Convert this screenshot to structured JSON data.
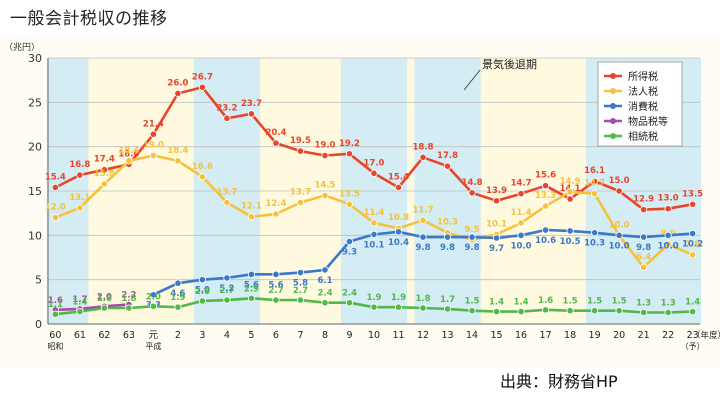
{
  "title": "一般会計税収の推移",
  "source": "出典：財務省HP",
  "chart_data": {
    "type": "line",
    "unit_label": "（兆円）",
    "x_unit_label": "（年度）",
    "categories": [
      "60",
      "61",
      "62",
      "63",
      "元",
      "2",
      "3",
      "4",
      "5",
      "6",
      "7",
      "8",
      "9",
      "10",
      "11",
      "12",
      "13",
      "14",
      "15",
      "16",
      "17",
      "18",
      "19",
      "20",
      "21",
      "22",
      "23"
    ],
    "category_sublabels": {
      "0": "昭和",
      "4": "平成",
      "26": "（予）"
    },
    "ylim": [
      0,
      30
    ],
    "yticks": [
      0,
      5,
      10,
      15,
      20,
      25,
      30
    ],
    "grid": true,
    "legend_position": "top-right",
    "annotation": "景気後退期",
    "recession_periods": [
      [
        "60",
        "61"
      ],
      [
        "3",
        "5"
      ],
      [
        "9",
        "11"
      ],
      [
        "12",
        "14"
      ],
      [
        "19",
        "23"
      ]
    ],
    "colors": {
      "recession_band": "#d4ecf3",
      "plot_background": "#fff9e0",
      "page_background": "#fffdf3",
      "grid": "#bfbfbf",
      "legend_border": "#999999"
    },
    "series": [
      {
        "name": "所得税",
        "color": "#e8452c",
        "values": [
          15.4,
          16.8,
          17.4,
          18.0,
          21.4,
          26.0,
          26.7,
          23.2,
          23.7,
          20.4,
          19.5,
          19.0,
          19.2,
          17.0,
          15.4,
          18.8,
          17.8,
          14.8,
          13.9,
          14.7,
          15.6,
          14.1,
          16.1,
          15.0,
          12.9,
          13.0,
          13.5
        ]
      },
      {
        "name": "法人税",
        "color": "#f5c23e",
        "values": [
          12.0,
          13.1,
          15.8,
          18.4,
          19.0,
          18.4,
          16.6,
          13.7,
          12.1,
          12.4,
          13.7,
          14.5,
          13.5,
          11.4,
          10.8,
          11.7,
          10.3,
          9.5,
          10.1,
          11.4,
          13.3,
          14.9,
          14.7,
          10.0,
          6.4,
          9.0,
          7.8
        ]
      },
      {
        "name": "消費税",
        "color": "#3b78c8",
        "values": [
          null,
          null,
          null,
          null,
          3.3,
          4.6,
          5.0,
          5.2,
          5.6,
          5.6,
          5.8,
          6.1,
          9.3,
          10.1,
          10.4,
          9.8,
          9.8,
          9.8,
          9.7,
          10.0,
          10.6,
          10.5,
          10.3,
          10.0,
          9.8,
          10.0,
          10.2
        ]
      },
      {
        "name": "物品税等",
        "color": "#a64ca6",
        "values": [
          1.6,
          1.7,
          2.0,
          2.2,
          null,
          null,
          null,
          null,
          null,
          null,
          null,
          null,
          null,
          null,
          null,
          null,
          null,
          null,
          null,
          null,
          null,
          null,
          null,
          null,
          null,
          null,
          null
        ]
      },
      {
        "name": "相続税",
        "color": "#52b84a",
        "values": [
          1.1,
          1.4,
          1.8,
          1.8,
          2.0,
          1.9,
          2.6,
          2.7,
          2.9,
          2.7,
          2.7,
          2.4,
          2.4,
          1.9,
          1.9,
          1.8,
          1.7,
          1.5,
          1.4,
          1.4,
          1.6,
          1.5,
          1.5,
          1.5,
          1.3,
          1.3,
          1.4
        ]
      }
    ]
  }
}
